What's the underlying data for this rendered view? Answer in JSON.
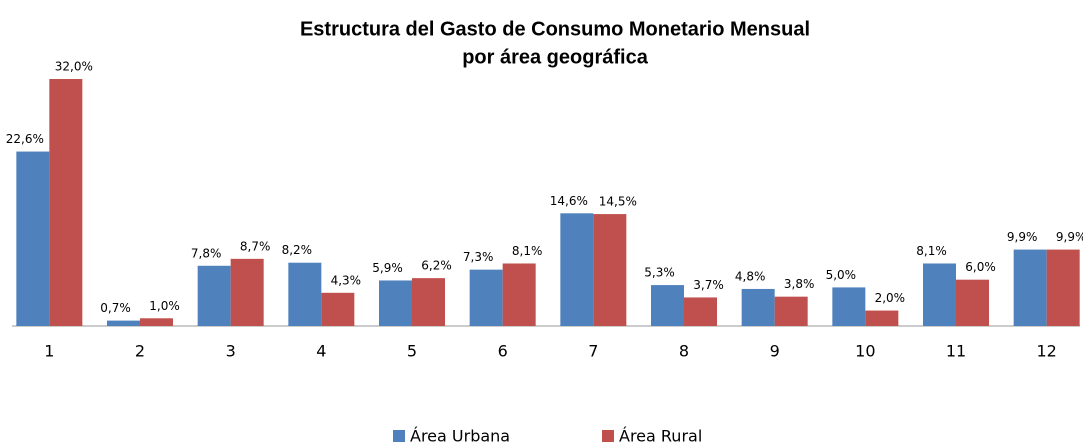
{
  "chart_data": {
    "type": "bar",
    "title": "Estructura del Gasto de Consumo Monetario Mensual",
    "subtitle": "por área geográfica",
    "categories": [
      "1",
      "2",
      "3",
      "4",
      "5",
      "6",
      "7",
      "8",
      "9",
      "10",
      "11",
      "12"
    ],
    "series": [
      {
        "name": "Área Urbana",
        "color": "#4f81bd",
        "values": [
          22.6,
          0.7,
          7.8,
          8.2,
          5.9,
          7.3,
          14.6,
          5.3,
          4.8,
          5.0,
          8.1,
          9.9
        ],
        "value_labels": [
          "22,6%",
          "0,7%",
          "7,8%",
          "8,2%",
          "5,9%",
          "7,3%",
          "14,6%",
          "5,3%",
          "4,8%",
          "5,0%",
          "8,1%",
          "9,9%"
        ]
      },
      {
        "name": "Área Rural",
        "color": "#c0504d",
        "values": [
          32.0,
          1.0,
          8.7,
          4.3,
          6.2,
          8.1,
          14.5,
          3.7,
          3.8,
          2.0,
          6.0,
          9.9
        ],
        "value_labels": [
          "32,0%",
          "1,0%",
          "8,7%",
          "4,3%",
          "6,2%",
          "8,1%",
          "14,5%",
          "3,7%",
          "3,8%",
          "2,0%",
          "6,0%",
          "9,9%"
        ]
      }
    ]
  }
}
